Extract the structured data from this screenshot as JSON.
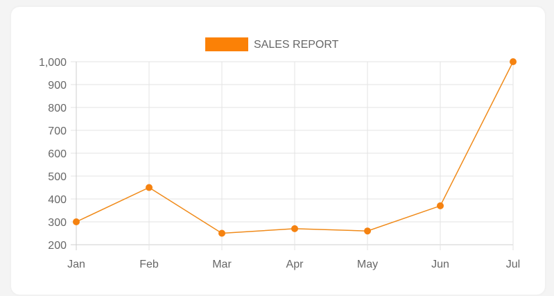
{
  "colors": {
    "line": "#f08a19",
    "point": "#f58210",
    "legend_box": "#fb8106"
  },
  "chart_data": {
    "type": "line",
    "categories": [
      "Jan",
      "Feb",
      "Mar",
      "Apr",
      "May",
      "Jun",
      "Jul"
    ],
    "series": [
      {
        "name": "SALES REPORT",
        "values": [
          300,
          450,
          250,
          270,
          260,
          370,
          1000
        ]
      }
    ],
    "ylim": [
      200,
      1000
    ],
    "yticks": [
      200,
      300,
      400,
      500,
      600,
      700,
      800,
      900,
      1000
    ],
    "ytick_labels": [
      "200",
      "300",
      "400",
      "500",
      "600",
      "700",
      "800",
      "900",
      "1,000"
    ],
    "grid": true,
    "legend_position": "top-center"
  }
}
